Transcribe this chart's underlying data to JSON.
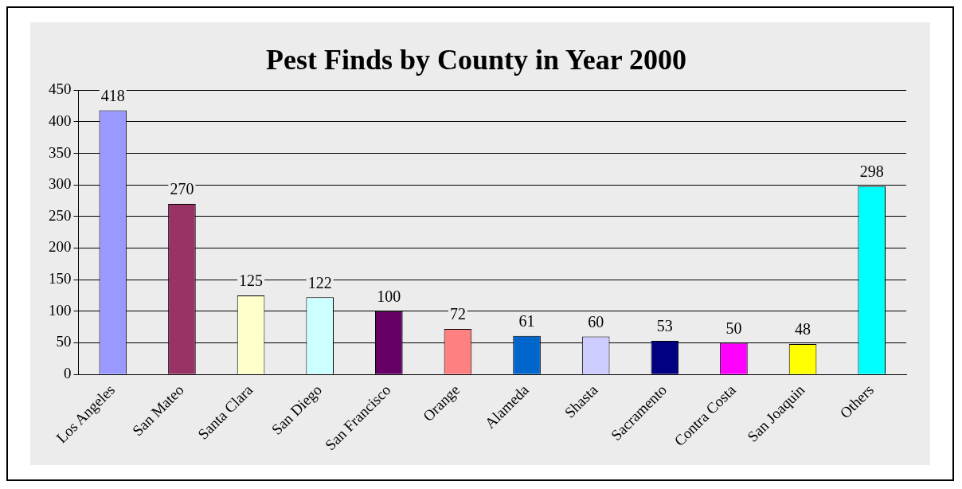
{
  "chart_data": {
    "type": "bar",
    "title": "Pest Finds by County in Year 2000",
    "categories": [
      "Los Angeles",
      "San Mateo",
      "Santa Clara",
      "San Diego",
      "San Francisco",
      "Orange",
      "Alameda",
      "Shasta",
      "Sacramento",
      "Contra Costa",
      "San Joaquin",
      "Others"
    ],
    "values": [
      418,
      270,
      125,
      122,
      100,
      72,
      61,
      60,
      53,
      50,
      48,
      298
    ],
    "colors": [
      "#9999ff",
      "#993366",
      "#ffffcc",
      "#ccffff",
      "#660066",
      "#ff8080",
      "#0066cc",
      "#ccccff",
      "#000080",
      "#ff00ff",
      "#ffff00",
      "#00ffff"
    ],
    "ylim": [
      0,
      450
    ],
    "yticks": [
      0,
      50,
      100,
      150,
      200,
      250,
      300,
      350,
      400,
      450
    ],
    "grid": "y",
    "data_labels": true,
    "legend": false
  }
}
